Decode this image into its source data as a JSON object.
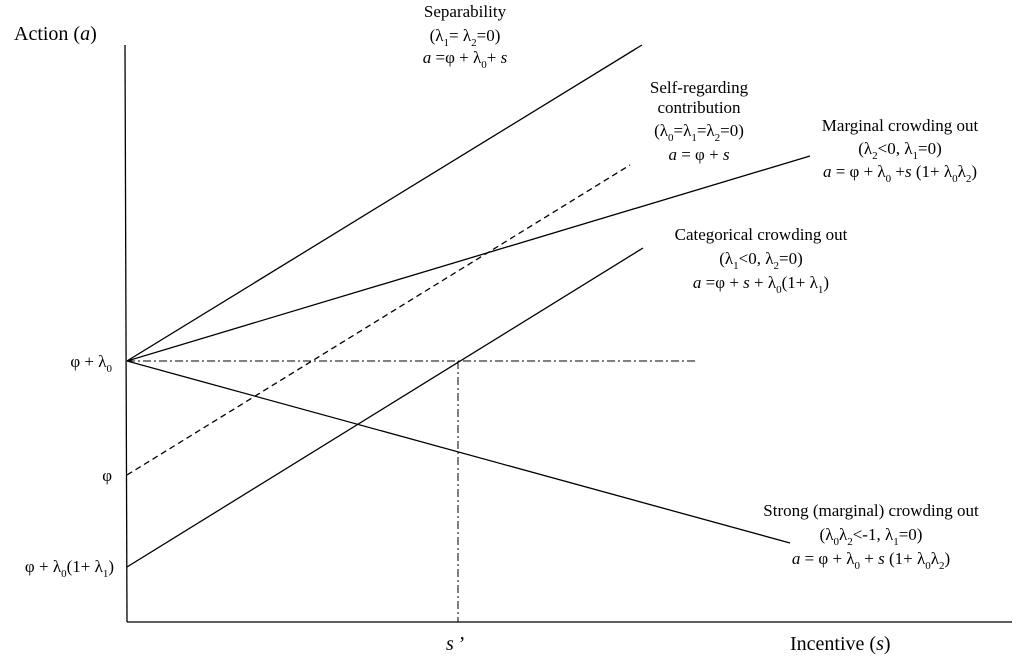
{
  "axes": {
    "y_title": "Action (a)",
    "y_title_parts": [
      "Action (",
      "a",
      ")"
    ],
    "x_title_parts": [
      "Incentive (",
      "s",
      ")"
    ],
    "x_tick_parts": [
      "s",
      " ’"
    ],
    "y_ticks": {
      "phi_lambda0": [
        "φ + λ",
        "0"
      ],
      "phi": "φ",
      "phi_lambda0_lambda1": [
        "φ + λ",
        "0",
        "(1+ λ",
        "1",
        ")"
      ]
    }
  },
  "lines": {
    "separability": {
      "title": "Separability",
      "condition": [
        "(λ",
        "1",
        "= λ",
        "2",
        "=0)"
      ],
      "equation": [
        "a",
        " =φ + λ",
        "0",
        "+ ",
        "s"
      ],
      "style": "solid"
    },
    "self_regarding": {
      "title_1": "Self-regarding",
      "title_2": "contribution",
      "condition": [
        "(λ",
        "0",
        "=λ",
        "1",
        "=λ",
        "2",
        "=0)"
      ],
      "equation": [
        "a",
        " = φ + ",
        "s"
      ],
      "style": "dashed"
    },
    "marginal": {
      "title": "Marginal crowding out",
      "condition": [
        "(λ",
        "2",
        "<0, λ",
        "1",
        "=0)"
      ],
      "equation": [
        "a",
        " = φ + λ",
        "0",
        " +",
        "s",
        " (1+ λ",
        "0",
        "λ",
        "2",
        ")"
      ],
      "style": "solid"
    },
    "categorical": {
      "title": "Categorical crowding out",
      "condition": [
        "(λ",
        "1",
        "<0, λ",
        "2",
        "=0)"
      ],
      "equation": [
        "a",
        " =φ + ",
        "s",
        " + λ",
        "0",
        "(1+ λ",
        "1",
        ")"
      ],
      "style": "solid"
    },
    "strong": {
      "title": "Strong (marginal) crowding out",
      "condition": [
        "(λ",
        "0",
        "λ",
        "2",
        "<-1, λ",
        "1",
        "=0)"
      ],
      "equation": [
        "a",
        " = φ + λ",
        "0",
        " + ",
        "s",
        " (1+ λ",
        "0",
        "λ",
        "2",
        ")"
      ],
      "style": "solid"
    }
  },
  "reference_lines": {
    "horizontal": "dash-dot at φ + λ0",
    "vertical": "dash-dot at s’"
  }
}
